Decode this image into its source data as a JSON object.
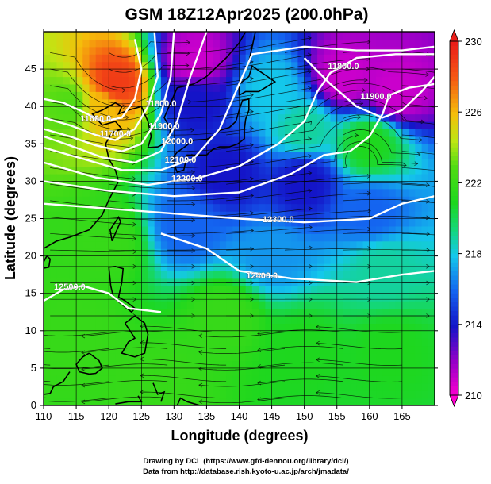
{
  "title": "GSM 18Z12Apr2025 (200.0hPa)",
  "axes": {
    "xlabel": "Longitude (degrees)",
    "ylabel": "Latitude  (degrees)",
    "x_ticks": [
      "110",
      "115",
      "120",
      "125",
      "130",
      "135",
      "140",
      "145",
      "150",
      "155",
      "160",
      "165"
    ],
    "y_ticks": [
      "0",
      "5",
      "10",
      "15",
      "20",
      "25",
      "30",
      "35",
      "40",
      "45"
    ]
  },
  "colorbar": {
    "labels": [
      "230",
      "226",
      "222",
      "218",
      "214",
      "210"
    ],
    "colors": [
      "#ff00d0",
      "#7a00c8",
      "#1010d0",
      "#1c78f0",
      "#10d0d0",
      "#18d818",
      "#b8e818",
      "#f0c000",
      "#f05a10",
      "#f02818"
    ]
  },
  "contour_labels": [
    "11600.0",
    "11700.0",
    "11800.0",
    "11900.0",
    "12000.0",
    "12100.0",
    "12200.0",
    "12300.0",
    "12400.0",
    "12500.0",
    "11800.0",
    "11900.0"
  ],
  "credits": {
    "line1": "Drawing by DCL (https://www.gfd-dennou.org/library/dcl/)",
    "line2": "Data from http://database.rish.kyoto-u.ac.jp/arch/jmadata/"
  },
  "chart_data": {
    "type": "heatmap",
    "title": "GSM 18Z12Apr2025 (200.0hPa)",
    "xlabel": "Longitude (degrees)",
    "ylabel": "Latitude  (degrees)",
    "xlim": [
      110,
      170
    ],
    "ylim": [
      0,
      50
    ],
    "colorbar": {
      "min": 210,
      "max": 230,
      "ticks": [
        210,
        214,
        218,
        222,
        226,
        230
      ]
    },
    "contours": [
      {
        "label": "11600.0",
        "lon": 118,
        "lat": 38
      },
      {
        "label": "11700.0",
        "lon": 121,
        "lat": 36
      },
      {
        "label": "11800.0",
        "lon": 128,
        "lat": 40
      },
      {
        "label": "11900.0",
        "lon": 128.5,
        "lat": 37
      },
      {
        "label": "12000.0",
        "lon": 130.5,
        "lat": 35
      },
      {
        "label": "12100.0",
        "lon": 131,
        "lat": 32.5
      },
      {
        "label": "12200.0",
        "lon": 132,
        "lat": 30
      },
      {
        "label": "12300.0",
        "lon": 146,
        "lat": 24.5
      },
      {
        "label": "12400.0",
        "lon": 143.5,
        "lat": 17
      },
      {
        "label": "12500.0",
        "lon": 114,
        "lat": 15.5
      },
      {
        "label": "11800.0",
        "lon": 156,
        "lat": 45
      },
      {
        "label": "11900.0",
        "lon": 161,
        "lat": 41
      }
    ],
    "temperature_field": [
      {
        "lon": 121,
        "lat": 43,
        "value": 229
      },
      {
        "lon": 119,
        "lat": 40,
        "value": 226
      },
      {
        "lon": 114,
        "lat": 40,
        "value": 223
      },
      {
        "lon": 133,
        "lat": 46,
        "value": 211
      },
      {
        "lon": 133,
        "lat": 41,
        "value": 214
      },
      {
        "lon": 145,
        "lat": 42,
        "value": 218
      },
      {
        "lon": 156,
        "lat": 44,
        "value": 211
      },
      {
        "lon": 164,
        "lat": 42,
        "value": 211
      },
      {
        "lon": 160,
        "lat": 35,
        "value": 221
      },
      {
        "lon": 150,
        "lat": 37,
        "value": 219
      },
      {
        "lon": 150,
        "lat": 30,
        "value": 214
      },
      {
        "lon": 138,
        "lat": 31,
        "value": 214
      },
      {
        "lon": 160,
        "lat": 26,
        "value": 216
      },
      {
        "lon": 132,
        "lat": 24,
        "value": 216
      },
      {
        "lon": 145,
        "lat": 20,
        "value": 217
      },
      {
        "lon": 162,
        "lat": 18,
        "value": 219
      },
      {
        "lon": 120,
        "lat": 22,
        "value": 222
      },
      {
        "lon": 138,
        "lat": 12,
        "value": 222
      },
      {
        "lon": 150,
        "lat": 8,
        "value": 221
      },
      {
        "lon": 115,
        "lat": 10,
        "value": 222
      },
      {
        "lon": 163,
        "lat": 8,
        "value": 221
      },
      {
        "lon": 128,
        "lat": 3,
        "value": 222
      }
    ]
  }
}
